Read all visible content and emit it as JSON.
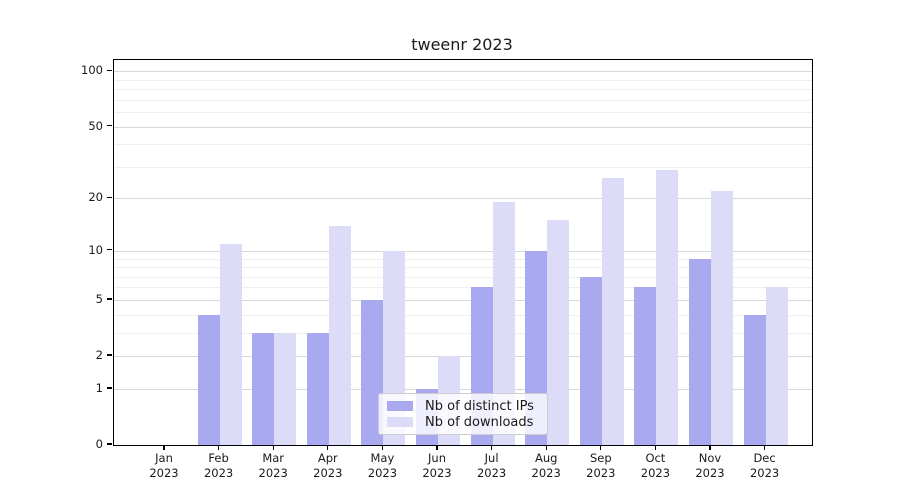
{
  "chart_data": {
    "type": "bar",
    "title": "tweenr 2023",
    "categories": [
      "Jan",
      "Feb",
      "Mar",
      "Apr",
      "May",
      "Jun",
      "Jul",
      "Aug",
      "Sep",
      "Oct",
      "Nov",
      "Dec"
    ],
    "category_year": "2023",
    "series": [
      {
        "name": "Nb of distinct IPs",
        "color": "#a9a9f0",
        "values": [
          0,
          4,
          3,
          3,
          5,
          1,
          6,
          10,
          7,
          6,
          9,
          4
        ]
      },
      {
        "name": "Nb of downloads",
        "color": "#dcdcf8",
        "values": [
          0,
          11,
          3,
          14,
          10,
          2,
          19,
          15,
          26,
          29,
          22,
          6
        ]
      }
    ],
    "xlabel": "",
    "ylabel": "",
    "yscale": "log1p",
    "ylim": [
      0,
      115
    ],
    "yticks": [
      0,
      1,
      2,
      5,
      10,
      20,
      50,
      100
    ],
    "yticks_minor": [
      3,
      4,
      6,
      7,
      8,
      9,
      30,
      40,
      60,
      70,
      80,
      90
    ],
    "grid": true,
    "legend_position": "lower-center-inside"
  },
  "colors": {
    "grid_major": "#d8d8d8",
    "grid_minor": "#efefef",
    "axis": "#000000",
    "text": "#1a1a1a",
    "legend_border": "#cccccc",
    "series_ips": "#a9a9f0",
    "series_downloads": "#dcdcf8"
  }
}
